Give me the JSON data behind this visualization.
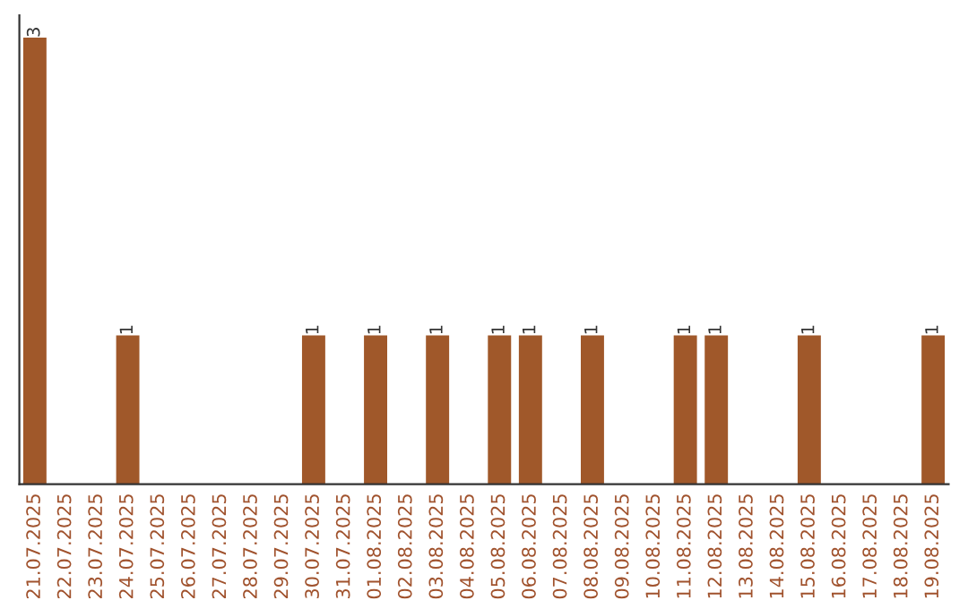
{
  "chart_data": {
    "type": "bar",
    "categories": [
      "21.07.2025",
      "22.07.2025",
      "23.07.2025",
      "24.07.2025",
      "25.07.2025",
      "26.07.2025",
      "27.07.2025",
      "28.07.2025",
      "29.07.2025",
      "30.07.2025",
      "31.07.2025",
      "01.08.2025",
      "02.08.2025",
      "03.08.2025",
      "04.08.2025",
      "05.08.2025",
      "06.08.2025",
      "07.08.2025",
      "08.08.2025",
      "09.08.2025",
      "10.08.2025",
      "11.08.2025",
      "12.08.2025",
      "13.08.2025",
      "14.08.2025",
      "15.08.2025",
      "16.08.2025",
      "17.08.2025",
      "18.08.2025",
      "19.08.2025"
    ],
    "values": [
      3,
      0,
      0,
      1,
      0,
      0,
      0,
      0,
      0,
      1,
      0,
      1,
      0,
      1,
      0,
      1,
      1,
      0,
      1,
      0,
      0,
      1,
      1,
      0,
      0,
      1,
      0,
      0,
      0,
      1
    ],
    "value_labels": [
      "3",
      null,
      null,
      "1",
      null,
      null,
      null,
      null,
      null,
      "1",
      null,
      "1",
      null,
      "1",
      null,
      "1",
      "1",
      null,
      "1",
      null,
      null,
      "1",
      "1",
      null,
      null,
      "1",
      null,
      null,
      null,
      "1"
    ],
    "color": "#a0582a",
    "tick_labels": "x",
    "grid": false,
    "legend": false
  }
}
